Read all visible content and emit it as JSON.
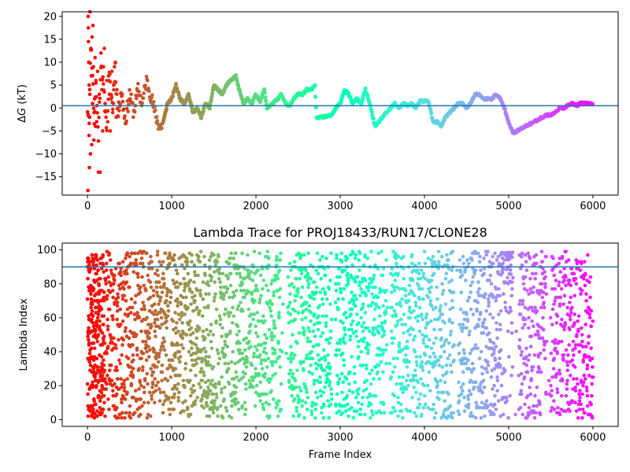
{
  "chart_data": [
    {
      "type": "scatter",
      "title": "",
      "xlabel": "",
      "ylabel": "ΔG (kT)",
      "ylabel_parts": {
        "delta": "Δ",
        "var": "G",
        "unit": " (kT)"
      },
      "xlim": [
        -300,
        6300
      ],
      "ylim": [
        -19,
        21
      ],
      "xticks": [
        0,
        1000,
        2000,
        3000,
        4000,
        5000,
        6000
      ],
      "yticks": [
        -15,
        -10,
        -5,
        0,
        5,
        10,
        15,
        20
      ],
      "hline": 0.5,
      "hline_color": "#1f77b4",
      "colormap": "rainbow_r",
      "grid": false,
      "trace_keyframes": [
        [
          0,
          0
        ],
        [
          20,
          -2
        ],
        [
          40,
          14
        ],
        [
          60,
          8
        ],
        [
          80,
          -3
        ],
        [
          100,
          5
        ],
        [
          130,
          -6
        ],
        [
          160,
          10
        ],
        [
          200,
          2
        ],
        [
          230,
          -4
        ],
        [
          260,
          7
        ],
        [
          300,
          0
        ],
        [
          330,
          9
        ],
        [
          360,
          -2
        ],
        [
          400,
          4
        ],
        [
          450,
          -3
        ],
        [
          500,
          3
        ],
        [
          550,
          -1
        ],
        [
          600,
          4
        ],
        [
          650,
          1
        ],
        [
          700,
          6
        ],
        [
          750,
          3
        ],
        [
          800,
          -1
        ],
        [
          860,
          -4.5
        ],
        [
          900,
          -3
        ],
        [
          950,
          1
        ],
        [
          1000,
          2
        ],
        [
          1050,
          5
        ],
        [
          1100,
          2
        ],
        [
          1150,
          1
        ],
        [
          1200,
          3
        ],
        [
          1250,
          -1
        ],
        [
          1300,
          0
        ],
        [
          1350,
          -2
        ],
        [
          1400,
          1
        ],
        [
          1450,
          0
        ],
        [
          1500,
          5
        ],
        [
          1550,
          4
        ],
        [
          1600,
          3
        ],
        [
          1650,
          5
        ],
        [
          1700,
          6
        ],
        [
          1760,
          7
        ],
        [
          1800,
          4
        ],
        [
          1850,
          1
        ],
        [
          1900,
          2
        ],
        [
          1950,
          1
        ],
        [
          2000,
          3
        ],
        [
          2050,
          1.5
        ],
        [
          2100,
          4
        ],
        [
          2130,
          0
        ],
        [
          2200,
          1
        ],
        [
          2260,
          2
        ],
        [
          2300,
          3
        ],
        [
          2350,
          1
        ],
        [
          2400,
          0.5
        ],
        [
          2450,
          2
        ],
        [
          2500,
          3
        ],
        [
          2550,
          3
        ],
        [
          2600,
          4
        ],
        [
          2650,
          4
        ],
        [
          2700,
          5
        ],
        [
          2720,
          -2
        ],
        [
          2800,
          -2
        ],
        [
          2900,
          -1.5
        ],
        [
          2950,
          0
        ],
        [
          3000,
          1
        ],
        [
          3050,
          4
        ],
        [
          3100,
          3
        ],
        [
          3150,
          1
        ],
        [
          3200,
          2
        ],
        [
          3250,
          1
        ],
        [
          3300,
          4
        ],
        [
          3350,
          1
        ],
        [
          3400,
          -3
        ],
        [
          3420,
          -4
        ],
        [
          3500,
          -2
        ],
        [
          3550,
          -1
        ],
        [
          3600,
          0
        ],
        [
          3650,
          1
        ],
        [
          3700,
          0
        ],
        [
          3750,
          1
        ],
        [
          3800,
          0.5
        ],
        [
          3850,
          1
        ],
        [
          3900,
          0
        ],
        [
          3950,
          1.5
        ],
        [
          4000,
          1.5
        ],
        [
          4050,
          1.5
        ],
        [
          4100,
          -3
        ],
        [
          4150,
          -3
        ],
        [
          4200,
          -4
        ],
        [
          4250,
          -2
        ],
        [
          4300,
          -1
        ],
        [
          4350,
          0
        ],
        [
          4400,
          1
        ],
        [
          4450,
          1
        ],
        [
          4500,
          0
        ],
        [
          4550,
          1
        ],
        [
          4600,
          3
        ],
        [
          4650,
          3
        ],
        [
          4700,
          2
        ],
        [
          4750,
          2
        ],
        [
          4800,
          2
        ],
        [
          4850,
          3
        ],
        [
          4900,
          2
        ],
        [
          4950,
          0
        ],
        [
          5000,
          -3
        ],
        [
          5050,
          -5.5
        ],
        [
          5100,
          -5
        ],
        [
          5150,
          -4.5
        ],
        [
          5200,
          -4
        ],
        [
          5250,
          -3.5
        ],
        [
          5300,
          -3
        ],
        [
          5350,
          -2.5
        ],
        [
          5400,
          -2
        ],
        [
          5450,
          -1.5
        ],
        [
          5500,
          -1.5
        ],
        [
          5550,
          -1
        ],
        [
          5600,
          0
        ],
        [
          5650,
          0
        ],
        [
          5700,
          0.5
        ],
        [
          5750,
          1
        ],
        [
          5800,
          0.5
        ],
        [
          5850,
          1
        ],
        [
          5900,
          1
        ],
        [
          6000,
          1
        ]
      ],
      "early_scatter": [
        [
          5,
          -18
        ],
        [
          8,
          20
        ],
        [
          10,
          17.5
        ],
        [
          12,
          14.5
        ],
        [
          15,
          10
        ],
        [
          18,
          -6
        ],
        [
          20,
          5
        ],
        [
          22,
          -13
        ],
        [
          25,
          -2
        ],
        [
          28,
          3
        ],
        [
          30,
          21
        ],
        [
          35,
          -10
        ],
        [
          40,
          13
        ],
        [
          45,
          7
        ],
        [
          50,
          -8
        ],
        [
          55,
          15.5
        ],
        [
          60,
          1
        ],
        [
          65,
          18
        ],
        [
          70,
          9
        ],
        [
          75,
          -7
        ],
        [
          80,
          -1
        ],
        [
          85,
          2
        ],
        [
          90,
          11
        ],
        [
          95,
          -4
        ],
        [
          100,
          6
        ],
        [
          110,
          -3
        ],
        [
          120,
          8
        ],
        [
          130,
          -14
        ],
        [
          140,
          3
        ],
        [
          150,
          -14
        ],
        [
          160,
          12
        ],
        [
          170,
          4
        ],
        [
          180,
          -5
        ],
        [
          190,
          9
        ],
        [
          200,
          13
        ],
        [
          210,
          1
        ],
        [
          220,
          -2
        ],
        [
          230,
          6
        ],
        [
          240,
          -3
        ],
        [
          250,
          7
        ],
        [
          260,
          3
        ],
        [
          270,
          -5
        ],
        [
          280,
          2
        ],
        [
          290,
          8
        ],
        [
          300,
          -1
        ],
        [
          310,
          5
        ],
        [
          320,
          9
        ],
        [
          330,
          10
        ],
        [
          340,
          -2
        ],
        [
          350,
          4
        ]
      ]
    },
    {
      "type": "scatter",
      "title": "Lambda Trace for PROJ18433/RUN17/CLONE28",
      "xlabel": "Frame Index",
      "ylabel": "Lambda Index",
      "xlim": [
        -300,
        6300
      ],
      "ylim": [
        -4,
        104
      ],
      "xticks": [
        0,
        1000,
        2000,
        3000,
        4000,
        5000,
        6000
      ],
      "yticks": [
        0,
        20,
        40,
        60,
        80,
        100
      ],
      "hline": 90,
      "hline_color": "#1f77b4",
      "colormap": "rainbow_r",
      "grid": false,
      "frame_range": [
        0,
        6000
      ],
      "lambda_range": [
        1,
        99
      ],
      "sparse_bands": [
        [
          2300,
          2380
        ],
        [
          2900,
          2940
        ],
        [
          3550,
          3600
        ],
        [
          4350,
          4400
        ],
        [
          5050,
          5120
        ],
        [
          5450,
          5500
        ]
      ]
    }
  ]
}
